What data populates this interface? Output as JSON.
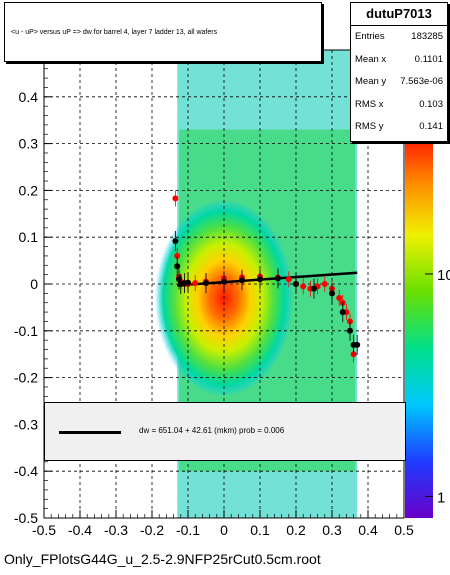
{
  "title": "<u - uP>       versus  uP =>  dw for barrel 4, layer 7 ladder 13, all wafers",
  "stats": {
    "name": "dutuP7013",
    "rows": [
      {
        "label": "Entries",
        "value": "183285"
      },
      {
        "label": "Mean x",
        "value": "0.1101"
      },
      {
        "label": "Mean y",
        "value": "7.563e-06"
      },
      {
        "label": "RMS x",
        "value": "0.103"
      },
      {
        "label": "RMS y",
        "value": "0.141"
      }
    ]
  },
  "fit_legend": "dw =  651.04 + 42.61 (mkm) prob = 0.006",
  "footer": "Only_FPlotsG44G_u_2.5-2.9NFP25rCut0.5cm.root",
  "colors": {
    "fit_line": "#000000",
    "profile_black": "#000000",
    "profile_red": "#ff0000"
  },
  "chart_data": {
    "type": "heatmap",
    "x": {
      "range": [
        -0.5,
        0.5
      ],
      "ticks": [
        "-0.5",
        "-0.4",
        "-0.3",
        "-0.2",
        "-0.1",
        "0",
        "0.1",
        "0.2",
        "0.3",
        "0.4",
        "0.5"
      ],
      "tick_values": [
        -0.5,
        -0.4,
        -0.3,
        -0.2,
        -0.1,
        0,
        0.1,
        0.2,
        0.3,
        0.4,
        0.5
      ]
    },
    "y": {
      "range": [
        -0.5,
        0.5
      ],
      "ticks": [
        "-0.5",
        "-0.4",
        "-0.3",
        "-0.2",
        "-0.1",
        "0",
        "0.1",
        "0.2",
        "0.3",
        "0.4"
      ],
      "tick_values": [
        -0.5,
        -0.4,
        -0.3,
        -0.2,
        -0.1,
        0,
        0.1,
        0.2,
        0.3,
        0.4
      ]
    },
    "z": {
      "scale": "log",
      "ticks": [
        "1",
        "10"
      ],
      "tick_values": [
        1,
        10
      ],
      "range": [
        0.8,
        40
      ]
    },
    "grid": true,
    "density": {
      "x_range": [
        -0.13,
        0.37
      ],
      "core": [
        0.0,
        -0.03
      ],
      "sigma": [
        0.12,
        0.1
      ]
    },
    "fit_line": {
      "x": [
        -0.13,
        0.37
      ],
      "y": [
        -0.003,
        0.024
      ]
    },
    "profile_black": {
      "x": [
        -0.135,
        -0.13,
        -0.125,
        -0.12,
        -0.11,
        -0.1,
        -0.05,
        0.0,
        0.05,
        0.1,
        0.15,
        0.2,
        0.25,
        0.3,
        0.33,
        0.35,
        0.36,
        0.37
      ],
      "y": [
        0.092,
        0.038,
        0.01,
        0.0,
        0.002,
        0.003,
        0.002,
        0.005,
        0.008,
        0.01,
        0.012,
        0.0,
        -0.01,
        -0.02,
        -0.06,
        -0.1,
        -0.13,
        -0.13
      ]
    },
    "profile_red": {
      "x": [
        -0.135,
        -0.13,
        -0.125,
        -0.12,
        -0.11,
        -0.1,
        -0.08,
        -0.05,
        0.0,
        0.05,
        0.1,
        0.15,
        0.18,
        0.2,
        0.22,
        0.24,
        0.26,
        0.28,
        0.3,
        0.32,
        0.33,
        0.34,
        0.35,
        0.36
      ],
      "y": [
        0.183,
        0.06,
        0.015,
        0.005,
        0.0,
        0.0,
        0.002,
        0.005,
        0.012,
        0.014,
        0.016,
        0.014,
        0.01,
        0.0,
        -0.005,
        -0.01,
        -0.005,
        0.0,
        -0.01,
        -0.03,
        -0.04,
        -0.06,
        -0.08,
        -0.15
      ]
    }
  }
}
